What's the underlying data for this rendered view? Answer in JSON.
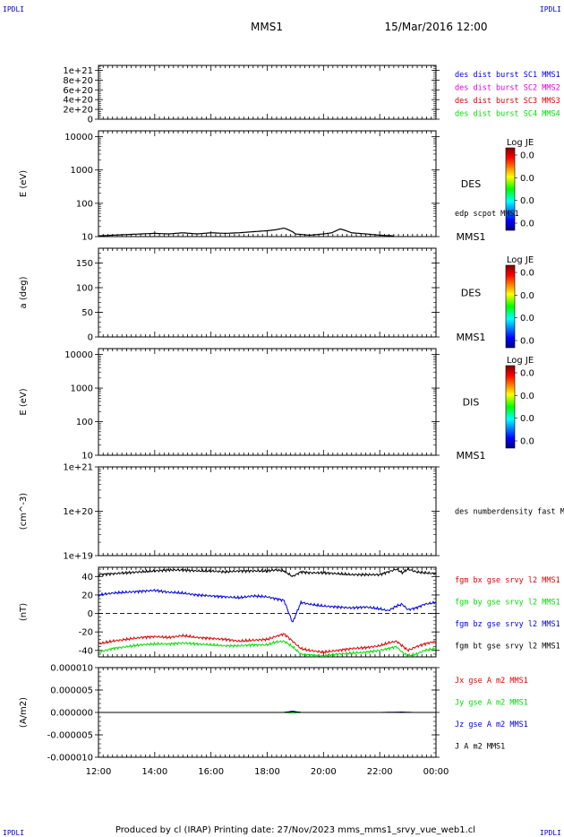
{
  "corner_labels": {
    "top_left": "IPDLI",
    "top_right": "IPDLI",
    "bottom_left": "IPDLI",
    "bottom_right": "IPDLI"
  },
  "header": {
    "spacecraft": "MMS1",
    "date": "15/Mar/2016 12:00"
  },
  "footer": "Produced by cl (IRAP)   Printing date: 27/Nov/2023   mms_mms1_srvy_vue_web1.cl",
  "x_axis": {
    "ticks": [
      "12:00",
      "14:00",
      "16:00",
      "18:00",
      "20:00",
      "22:00",
      "00:00"
    ],
    "range_hours": [
      12,
      24
    ]
  },
  "colorbar": {
    "title": "Log JE",
    "tick_labels": [
      "0.0",
      "0.0",
      "0.0",
      "0.0"
    ]
  },
  "colors": {
    "black": "#000000",
    "red": "#e00000",
    "green": "#00e000",
    "blue": "#0000e0",
    "magenta": "#e000e0"
  },
  "chart_data": [
    {
      "type": "line",
      "panel": "burst",
      "ylabel": "",
      "yticks": [
        "1e+21",
        "8e+20",
        "6e+20",
        "4e+20",
        "2e+20",
        "0"
      ],
      "ylim": [
        0,
        1.1e+21
      ],
      "series": [
        {
          "name": "des dist burst SC1 MMS1",
          "color": "#0000e0",
          "values": []
        },
        {
          "name": "des dist burst SC2 MMS2",
          "color": "#e000e0",
          "values": []
        },
        {
          "name": "des dist burst SC3 MMS3",
          "color": "#e00000",
          "values": []
        },
        {
          "name": "des dist burst SC4 MMS4",
          "color": "#00e000",
          "values": []
        }
      ],
      "reference_line": 0
    },
    {
      "type": "line",
      "panel": "des_energy",
      "ylabel": "E (eV)",
      "yticks": [
        "10000",
        "1000",
        "100",
        "10"
      ],
      "log_scale": true,
      "ylim": [
        10,
        15000
      ],
      "side_label": "DES",
      "sub_label": "MMS1",
      "series": [
        {
          "name": "edp scpot MMS1",
          "color": "#000000",
          "x": [
            12.0,
            12.5,
            13.0,
            13.5,
            14.0,
            14.5,
            15.0,
            15.5,
            16.0,
            16.5,
            17.0,
            17.5,
            18.0,
            18.3,
            18.6,
            18.9,
            19.0,
            19.5,
            20.0,
            20.3,
            20.6,
            21.0,
            21.5,
            22.0,
            22.5
          ],
          "values": [
            10.5,
            11,
            11.5,
            12,
            12.5,
            12,
            13,
            12,
            13,
            12.5,
            13,
            14,
            15,
            16,
            18,
            14,
            12,
            11,
            12,
            13,
            17,
            13,
            12,
            11,
            10.5
          ]
        }
      ]
    },
    {
      "type": "heatmap",
      "panel": "des_pitch",
      "ylabel": "a (deg)",
      "yticks": [
        "150",
        "100",
        "50",
        "0"
      ],
      "ylim": [
        0,
        180
      ],
      "side_label": "DES",
      "sub_label": "MMS1"
    },
    {
      "type": "heatmap",
      "panel": "dis_energy",
      "ylabel": "E (eV)",
      "yticks": [
        "10000",
        "1000",
        "100",
        "10"
      ],
      "log_scale": true,
      "ylim": [
        10,
        15000
      ],
      "side_label": "DIS",
      "sub_label": "MMS1"
    },
    {
      "type": "line",
      "panel": "density",
      "ylabel": "(cm^-3)",
      "yticks": [
        "1e+21",
        "1e+20",
        "1e+19"
      ],
      "log_scale": true,
      "ylim": [
        1e+19,
        1e+21
      ],
      "series": [
        {
          "name": "des numberdensity fast M",
          "color": "#000000",
          "values": []
        }
      ]
    },
    {
      "type": "line",
      "panel": "fgm",
      "ylabel": "(nT)",
      "yticks": [
        "40",
        "20",
        "0",
        "-20",
        "-40"
      ],
      "ylim": [
        -47,
        50
      ],
      "reference_line": 0,
      "x": [
        12.0,
        12.5,
        13.0,
        13.5,
        14.0,
        14.5,
        15.0,
        15.5,
        16.0,
        16.5,
        17.0,
        17.5,
        18.0,
        18.3,
        18.6,
        18.9,
        19.2,
        19.5,
        20.0,
        20.5,
        21.0,
        21.5,
        22.0,
        22.3,
        22.6,
        22.8,
        23.0,
        23.3,
        23.6,
        24.0
      ],
      "series": [
        {
          "name": "fgm bx gse srvy l2 MMS1",
          "color": "#e00000",
          "values": [
            -33,
            -30,
            -28,
            -26,
            -25,
            -26,
            -24,
            -26,
            -27,
            -28,
            -30,
            -29,
            -28,
            -25,
            -22,
            -30,
            -38,
            -40,
            -42,
            -40,
            -38,
            -37,
            -35,
            -32,
            -30,
            -35,
            -40,
            -36,
            -33,
            -30
          ]
        },
        {
          "name": "fgm by gse srvy l2 MMS1",
          "color": "#00e000",
          "values": [
            -42,
            -38,
            -36,
            -34,
            -33,
            -33,
            -32,
            -33,
            -34,
            -35,
            -35,
            -34,
            -34,
            -31,
            -30,
            -36,
            -44,
            -45,
            -46,
            -44,
            -43,
            -42,
            -40,
            -38,
            -36,
            -42,
            -46,
            -44,
            -40,
            -38
          ]
        },
        {
          "name": "fgm bz gse srvy l2 MMS1",
          "color": "#0000e0",
          "values": [
            20,
            22,
            23,
            24,
            25,
            23,
            22,
            20,
            19,
            18,
            17,
            19,
            18,
            16,
            14,
            -10,
            12,
            10,
            8,
            7,
            6,
            7,
            5,
            3,
            8,
            10,
            4,
            6,
            10,
            12
          ]
        },
        {
          "name": "fgm bt gse srvy l2 MMS1",
          "color": "#000000",
          "values": [
            42,
            43,
            44,
            45,
            46,
            47,
            47,
            46,
            46,
            45,
            46,
            46,
            46,
            47,
            46,
            40,
            45,
            44,
            44,
            43,
            42,
            42,
            42,
            45,
            48,
            44,
            48,
            45,
            44,
            43
          ]
        }
      ]
    },
    {
      "type": "line",
      "panel": "current",
      "ylabel": "(A/m2)",
      "yticks": [
        "0.000010",
        "0.000005",
        "0.000000",
        "-0.000005",
        "-0.000010"
      ],
      "ylim": [
        -1e-05,
        1e-05
      ],
      "x": [
        12.0,
        13.0,
        14.0,
        15.0,
        16.0,
        17.0,
        18.0,
        18.6,
        18.9,
        19.2,
        20.0,
        21.0,
        22.0,
        22.8,
        23.2,
        24.0
      ],
      "series": [
        {
          "name": "Jx gse A m2 MMS1",
          "color": "#e00000",
          "values": [
            0,
            0,
            0,
            0,
            0,
            0,
            0,
            0,
            2e-07,
            0,
            0,
            0,
            0,
            0,
            0,
            0
          ]
        },
        {
          "name": "Jy gse A m2 MMS1",
          "color": "#00e000",
          "values": [
            0,
            0,
            0,
            0,
            0,
            0,
            0,
            0,
            -2e-07,
            0,
            0,
            0,
            0,
            0,
            0,
            0
          ]
        },
        {
          "name": "Jz gse A m2 MMS1",
          "color": "#0000e0",
          "values": [
            0,
            0,
            0,
            0,
            0,
            0,
            0,
            0,
            3e-07,
            0,
            0,
            0,
            0,
            1e-07,
            0,
            0
          ]
        },
        {
          "name": "J A m2 MMS1",
          "color": "#000000",
          "values": [
            0,
            0,
            0,
            0,
            0,
            0,
            0,
            0,
            1e-07,
            0,
            0,
            0,
            0,
            0,
            0,
            0
          ]
        }
      ]
    }
  ]
}
